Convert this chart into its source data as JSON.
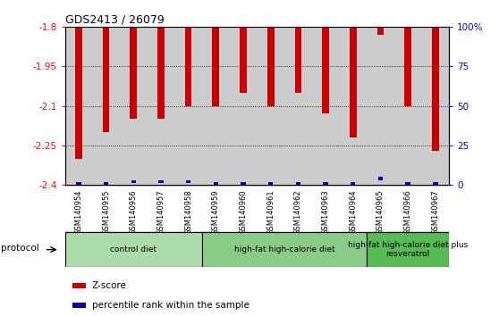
{
  "title": "GDS2413 / 26079",
  "samples": [
    "GSM140954",
    "GSM140955",
    "GSM140956",
    "GSM140957",
    "GSM140958",
    "GSM140959",
    "GSM140960",
    "GSM140961",
    "GSM140962",
    "GSM140963",
    "GSM140964",
    "GSM140965",
    "GSM140966",
    "GSM140967"
  ],
  "zscore": [
    -2.3,
    -2.2,
    -2.15,
    -2.15,
    -2.1,
    -2.1,
    -2.05,
    -2.1,
    -2.05,
    -2.13,
    -2.22,
    -1.83,
    -2.1,
    -2.27
  ],
  "percentile": [
    1,
    1,
    2,
    2,
    2,
    1,
    1,
    1,
    1,
    1,
    1,
    4,
    1,
    1
  ],
  "ylim_left": [
    -2.4,
    -1.8
  ],
  "ylim_right": [
    0,
    100
  ],
  "yticks_left": [
    -2.4,
    -2.25,
    -2.1,
    -1.95,
    -1.8
  ],
  "yticks_right": [
    0,
    25,
    50,
    75,
    100
  ],
  "ytick_labels_left": [
    "-2.4",
    "-2.25",
    "-2.1",
    "-1.95",
    "-1.8"
  ],
  "ytick_labels_right": [
    "0",
    "25",
    "50",
    "75",
    "100%"
  ],
  "bar_color": "#cc0000",
  "percentile_color": "#0000bb",
  "bg_color": "#cccccc",
  "plot_bg": "#dddddd",
  "protocol_groups": [
    {
      "label": "control diet",
      "start": 0,
      "end": 4,
      "color": "#aaddaa"
    },
    {
      "label": "high-fat high-calorie diet",
      "start": 5,
      "end": 10,
      "color": "#88cc88"
    },
    {
      "label": "high-fat high-calorie diet plus\nresveratrol",
      "start": 11,
      "end": 13,
      "color": "#55bb55"
    }
  ],
  "legend_zscore_label": "Z-score",
  "legend_percentile_label": "percentile rank within the sample",
  "protocol_label": "protocol",
  "bar_width": 0.25
}
